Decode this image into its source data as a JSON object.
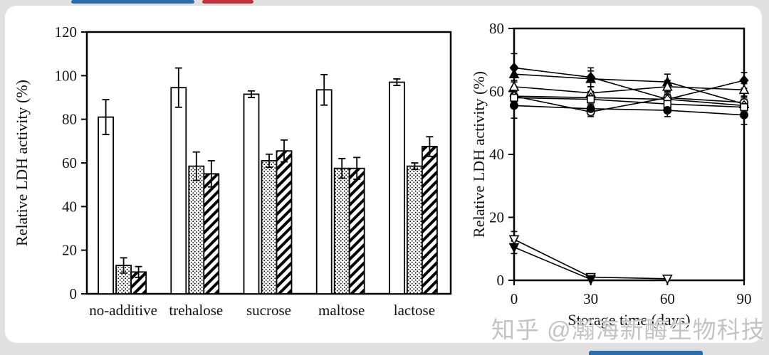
{
  "page": {
    "background_color": "#e0e0e0",
    "card_color": "#ffffff",
    "top_blue_bar_color": "#2b6cac",
    "top_red_bar_color": "#c2323e",
    "bottom_bar_color": "#2b6cac",
    "watermark": "知乎 @瀚海新酶生物科技"
  },
  "chart_data": [
    {
      "id": "additive-bar-chart",
      "type": "bar",
      "title": "",
      "xlabel": "",
      "ylabel": "Relative LDH activity (%)",
      "ylim": [
        0,
        120
      ],
      "yticks": [
        0,
        20,
        40,
        60,
        80,
        100,
        120
      ],
      "grid": false,
      "legend": "none",
      "categories": [
        "no-additive",
        "trehalose",
        "sucrose",
        "maltose",
        "lactose"
      ],
      "series": [
        {
          "name": "open-bar",
          "pattern": "plain",
          "values": [
            81,
            94.5,
            91.5,
            93.5,
            97
          ],
          "errors": [
            8,
            9,
            1.5,
            7,
            1.5
          ]
        },
        {
          "name": "dotted-bar",
          "pattern": "dots",
          "values": [
            13,
            58.5,
            61,
            57.5,
            58.5
          ],
          "errors": [
            3.5,
            6.5,
            3,
            4.5,
            1.5
          ]
        },
        {
          "name": "hatched-bar",
          "pattern": "diagonal-hatch",
          "values": [
            10,
            55,
            65.5,
            57.5,
            67.5
          ],
          "errors": [
            2.5,
            6,
            5,
            5,
            4.5
          ]
        }
      ]
    },
    {
      "id": "storage-line-chart",
      "type": "line",
      "title": "",
      "xlabel": "Storage time (days)",
      "ylabel": "Relative LDH activity (%)",
      "xlim": [
        0,
        90
      ],
      "ylim": [
        0,
        80
      ],
      "xticks": [
        0,
        30,
        60,
        90
      ],
      "yticks": [
        0,
        20,
        40,
        60,
        80
      ],
      "grid": false,
      "legend": "none",
      "x": [
        0,
        30,
        60,
        90
      ],
      "series": [
        {
          "name": "filled-diamond",
          "marker": "diamond",
          "fill": "black",
          "values": [
            67.5,
            64.5,
            57.5,
            63.5
          ],
          "errors": [
            4.5,
            3,
            2,
            2.5
          ]
        },
        {
          "name": "filled-triangle",
          "marker": "triangle-up",
          "fill": "black",
          "values": [
            65.5,
            64,
            63,
            56
          ],
          "errors": [
            2.5,
            2.5,
            2.5,
            2
          ]
        },
        {
          "name": "open-triangle",
          "marker": "triangle-up",
          "fill": "white",
          "values": [
            61.5,
            59.5,
            61.5,
            60.5
          ],
          "errors": [
            2,
            2,
            2,
            2
          ]
        },
        {
          "name": "open-circle",
          "marker": "circle",
          "fill": "white",
          "values": [
            58.5,
            53.5,
            58,
            56.5
          ],
          "errors": [
            2,
            1.5,
            2,
            2
          ]
        },
        {
          "name": "open-diamond",
          "marker": "diamond",
          "fill": "white",
          "values": [
            58.5,
            58,
            57.5,
            55.5
          ],
          "errors": [
            2,
            2,
            1.5,
            2
          ]
        },
        {
          "name": "open-square",
          "marker": "square",
          "fill": "white",
          "values": [
            58,
            57.5,
            56,
            55
          ],
          "errors": [
            2,
            2,
            1.5,
            2
          ]
        },
        {
          "name": "filled-circle",
          "marker": "circle",
          "fill": "black",
          "values": [
            55.5,
            54.5,
            54,
            52.5
          ],
          "errors": [
            4,
            2,
            2,
            3
          ]
        },
        {
          "name": "open-down-triangle",
          "marker": "triangle-down",
          "fill": "white",
          "values": [
            13,
            1,
            0.5,
            null
          ],
          "errors": [
            2.5,
            0.5,
            0.5,
            null
          ]
        },
        {
          "name": "filled-down-triangle",
          "marker": "triangle-down",
          "fill": "black",
          "values": [
            10.5,
            0.3,
            null,
            null
          ],
          "errors": [
            2,
            0.3,
            null,
            null
          ]
        }
      ]
    }
  ]
}
